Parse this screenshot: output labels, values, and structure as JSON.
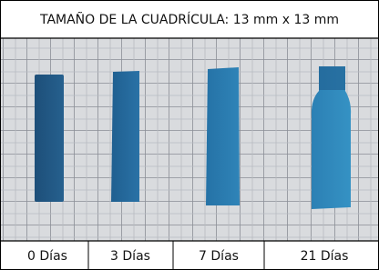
{
  "header": {
    "title": "TAMAÑO DE LA CUADRÍCULA: 13 mm x 13 mm"
  },
  "labels": [
    "0 Días",
    "3 Días",
    "7 Días",
    "21 Días"
  ]
}
